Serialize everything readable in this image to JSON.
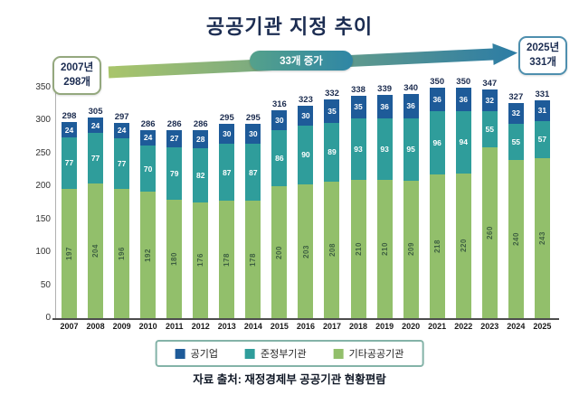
{
  "title": "공공기관 지정 추이",
  "callout_left": {
    "line1": "2007년",
    "line2": "298개"
  },
  "callout_right": {
    "line1": "2025년",
    "line2": "331개"
  },
  "arrow_label": "33개 증가",
  "source": "자료 출처: 재정경제부 공공기관 현황편람",
  "colors": {
    "title": "#1c2d52",
    "arrow_start": "#a9c56b",
    "arrow_end": "#2c7ca5",
    "badge_start": "#55a18b",
    "badge_end": "#2f86a5"
  },
  "chart_data": {
    "type": "bar",
    "stacked": true,
    "title": "공공기관 지정 추이",
    "categories": [
      "2007",
      "2008",
      "2009",
      "2010",
      "2011",
      "2012",
      "2013",
      "2014",
      "2015",
      "2016",
      "2017",
      "2018",
      "2019",
      "2020",
      "2021",
      "2022",
      "2023",
      "2024",
      "2025"
    ],
    "series": [
      {
        "name": "공기업",
        "color": "#1e5b99",
        "values": [
          24,
          24,
          24,
          24,
          27,
          28,
          30,
          30,
          30,
          30,
          35,
          35,
          36,
          36,
          36,
          36,
          32,
          32,
          31
        ]
      },
      {
        "name": "준정부기관",
        "color": "#2f9d9b",
        "values": [
          77,
          77,
          77,
          70,
          79,
          82,
          87,
          87,
          86,
          90,
          89,
          93,
          93,
          95,
          96,
          94,
          55,
          55,
          57
        ]
      },
      {
        "name": "기타공공기관",
        "color": "#92bf6b",
        "values": [
          197,
          204,
          196,
          192,
          180,
          176,
          178,
          178,
          200,
          203,
          208,
          210,
          210,
          209,
          218,
          220,
          260,
          240,
          243
        ]
      }
    ],
    "totals": [
      298,
      305,
      297,
      286,
      286,
      286,
      295,
      295,
      316,
      323,
      332,
      338,
      339,
      340,
      350,
      350,
      347,
      327,
      331
    ],
    "yticks": [
      0,
      50,
      100,
      150,
      200,
      250,
      300,
      350
    ],
    "ylim": [
      0,
      350
    ],
    "legend_position": "bottom"
  }
}
